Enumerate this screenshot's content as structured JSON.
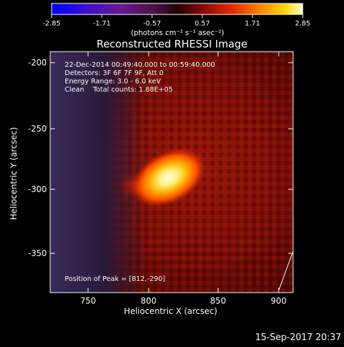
{
  "colorbar": {
    "ticks": [
      "-2.85",
      "-1.71",
      "-0.57",
      "0.57",
      "1.71",
      "2.85"
    ],
    "units": "(photons cm⁻² s⁻¹ asec⁻²)"
  },
  "plot": {
    "title": "Reconstructed RHESSI Image",
    "xlabel": "Heliocentric X (arcsec)",
    "ylabel": "Heliocentric Y (arcsec)",
    "xticks": [
      "750",
      "800",
      "850",
      "900"
    ],
    "yticks": [
      "-200",
      "-250",
      "-300",
      "-350"
    ],
    "info": [
      "22-Dec-2014 00:49:40.000 to 00:59:40.000",
      "Detectors: 3F 6F 7F 9F, Att 0",
      "Energy Range: 3.0 - 6.0 keV",
      "Clean    Total counts: 1.88E+05"
    ],
    "peak_label": "Position of Peak = [812,-290]"
  },
  "footer_timestamp": "15-Sep-2017 20:37",
  "colors": {
    "background": "#000000",
    "text": "#ffffff",
    "colormap": [
      "#0000ff",
      "#5b1aa0",
      "#3a1a45",
      "#200808",
      "#a01414",
      "#ff5000",
      "#ffc000",
      "#ffffa0"
    ]
  }
}
